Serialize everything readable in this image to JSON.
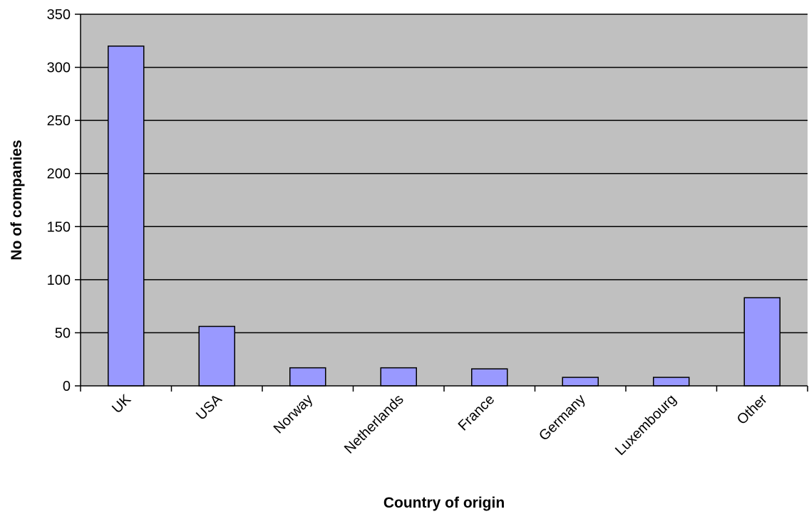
{
  "chart_data": {
    "type": "bar",
    "title": "",
    "xlabel": "Country of origin",
    "ylabel": "No of companies",
    "categories": [
      "UK",
      "USA",
      "Norway",
      "Netherlands",
      "France",
      "Germany",
      "Luxembourg",
      "Other"
    ],
    "values": [
      320,
      56,
      17,
      17,
      16,
      8,
      8,
      83
    ],
    "ylim": [
      0,
      350
    ],
    "yticks": [
      "0",
      "50",
      "100",
      "150",
      "200",
      "250",
      "300",
      "350"
    ],
    "grid": true,
    "legend": "none",
    "colors": {
      "plot_background": "#c0c0c0",
      "bar_fill": "#9999ff",
      "bar_stroke": "#000000",
      "gridline": "#000000"
    }
  }
}
